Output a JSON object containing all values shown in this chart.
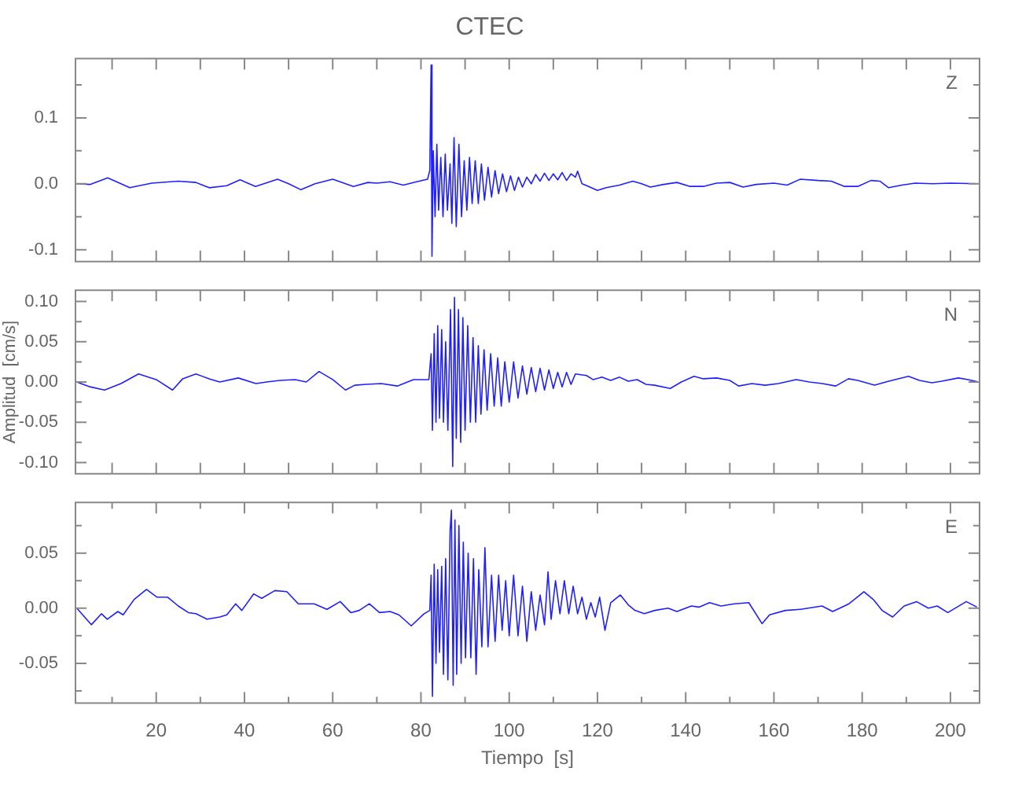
{
  "chart_data": [
    {
      "type": "line",
      "title": "CTEC",
      "annotations": [
        "Z"
      ],
      "color": "#1f1fff",
      "marker": "none",
      "tick_labels": "y",
      "xlim": [
        1.7,
        206.6
      ],
      "xticks": [
        {
          "value": 10,
          "label": null
        },
        {
          "value": 20,
          "label": null
        },
        {
          "value": 30,
          "label": null
        },
        {
          "value": 40,
          "label": null
        },
        {
          "value": 50,
          "label": null
        },
        {
          "value": 60,
          "label": null
        },
        {
          "value": 70,
          "label": null
        },
        {
          "value": 80,
          "label": null
        },
        {
          "value": 90,
          "label": null
        },
        {
          "value": 100,
          "label": null
        },
        {
          "value": 110,
          "label": null
        },
        {
          "value": 120,
          "label": null
        },
        {
          "value": 130,
          "label": null
        },
        {
          "value": 140,
          "label": null
        },
        {
          "value": 150,
          "label": null
        },
        {
          "value": 160,
          "label": null
        },
        {
          "value": 170,
          "label": null
        },
        {
          "value": 180,
          "label": null
        },
        {
          "value": 190,
          "label": null
        },
        {
          "value": 200,
          "label": null
        }
      ],
      "ylim": [
        -0.118,
        0.19
      ],
      "yticks": [
        {
          "value": -0.1,
          "label": "-0.1"
        },
        {
          "value": -0.05,
          "label": null
        },
        {
          "value": 0,
          "label": "0.0"
        },
        {
          "value": 0.05,
          "label": null
        },
        {
          "value": 0.1,
          "label": "0.1"
        },
        {
          "value": 0.15,
          "label": null
        }
      ],
      "x": [
        2,
        5,
        9,
        14,
        19,
        25,
        29,
        32,
        36,
        39,
        42.5,
        47.5,
        50,
        52.8,
        56,
        60,
        64.7,
        68,
        70,
        73,
        76,
        79,
        81.5,
        82,
        82.3,
        82.5,
        82.8,
        83.2,
        83.6,
        84,
        84.5,
        85,
        85.5,
        86,
        86.6,
        87,
        87.5,
        88,
        88.6,
        89.2,
        89.8,
        90.4,
        91,
        91.6,
        92.3,
        93,
        93.7,
        94.4,
        95.2,
        96,
        96.8,
        97.6,
        98.5,
        99.4,
        100.3,
        101.2,
        102.1,
        103,
        104,
        105,
        106,
        107,
        108,
        109,
        110,
        111,
        112,
        113,
        114,
        115,
        115.5,
        116.5,
        118,
        120,
        122,
        125,
        128,
        130,
        132,
        135,
        138,
        141,
        144,
        147,
        150,
        153,
        156,
        160,
        163,
        166,
        170,
        173,
        176,
        179,
        182,
        184,
        186,
        189,
        192,
        196,
        200,
        206
      ],
      "values": [
        0,
        -0.001,
        0.009,
        -0.006,
        0.001,
        0.004,
        0.002,
        -0.006,
        -0.003,
        0.006,
        -0.004,
        0.007,
        0,
        -0.009,
        0,
        0.007,
        -0.004,
        0.002,
        0.001,
        0.003,
        -0.002,
        0.003,
        0.007,
        0.02,
        0.18,
        -0.11,
        0.05,
        -0.05,
        0.06,
        -0.04,
        0.04,
        -0.05,
        0.045,
        -0.04,
        0.03,
        -0.06,
        0.07,
        -0.065,
        0.06,
        -0.05,
        0.035,
        -0.04,
        0.04,
        -0.03,
        0.035,
        -0.03,
        0.03,
        -0.025,
        0.025,
        -0.02,
        0.02,
        -0.015,
        0.015,
        -0.012,
        0.012,
        -0.01,
        0.01,
        -0.005,
        0.01,
        0,
        0.014,
        0.004,
        0.016,
        0.005,
        0.015,
        0.006,
        0.017,
        0.005,
        0.015,
        0.01,
        0.019,
        0,
        -0.004,
        -0.01,
        -0.006,
        -0.002,
        0.004,
        0,
        -0.005,
        -0.001,
        0.002,
        -0.004,
        -0.004,
        0.001,
        0.002,
        -0.005,
        -0.001,
        0.001,
        -0.002,
        0.007,
        0.005,
        0.004,
        -0.004,
        -0.004,
        0.005,
        0.004,
        -0.006,
        -0.002,
        0.001,
        0,
        0.001,
        0
      ]
    },
    {
      "type": "line",
      "ylabel": "Amplitud  [cm/s]",
      "annotations": [
        "N"
      ],
      "color": "#1f1fff",
      "marker": "none",
      "tick_labels": "y",
      "xlim": [
        1.7,
        206.6
      ],
      "xticks": [
        {
          "value": 10,
          "label": null
        },
        {
          "value": 20,
          "label": null
        },
        {
          "value": 30,
          "label": null
        },
        {
          "value": 40,
          "label": null
        },
        {
          "value": 50,
          "label": null
        },
        {
          "value": 60,
          "label": null
        },
        {
          "value": 70,
          "label": null
        },
        {
          "value": 80,
          "label": null
        },
        {
          "value": 90,
          "label": null
        },
        {
          "value": 100,
          "label": null
        },
        {
          "value": 110,
          "label": null
        },
        {
          "value": 120,
          "label": null
        },
        {
          "value": 130,
          "label": null
        },
        {
          "value": 140,
          "label": null
        },
        {
          "value": 150,
          "label": null
        },
        {
          "value": 160,
          "label": null
        },
        {
          "value": 170,
          "label": null
        },
        {
          "value": 180,
          "label": null
        },
        {
          "value": 190,
          "label": null
        },
        {
          "value": 200,
          "label": null
        }
      ],
      "ylim": [
        -0.114,
        0.114
      ],
      "yticks": [
        {
          "value": -0.1,
          "label": "-0.10"
        },
        {
          "value": -0.075,
          "label": null
        },
        {
          "value": -0.05,
          "label": "-0.05"
        },
        {
          "value": -0.025,
          "label": null
        },
        {
          "value": 0,
          "label": "0.00"
        },
        {
          "value": 0.025,
          "label": null
        },
        {
          "value": 0.05,
          "label": "0.05"
        },
        {
          "value": 0.075,
          "label": null
        },
        {
          "value": 0.1,
          "label": "0.10"
        }
      ],
      "x": [
        2,
        5,
        8.3,
        12,
        16,
        20,
        23.7,
        26,
        29,
        32,
        34.4,
        38.6,
        42.6,
        45,
        48,
        51.5,
        54,
        56.9,
        60,
        62.9,
        65,
        67.5,
        71,
        74.7,
        78.3,
        81.8,
        82.3,
        82.6,
        83,
        83.4,
        83.8,
        84.2,
        84.7,
        85.1,
        85.6,
        86.1,
        86.7,
        87.2,
        87.6,
        88,
        88.5,
        89,
        89.5,
        90,
        90.6,
        91.2,
        91.8,
        92.4,
        93,
        93.6,
        94.3,
        95,
        95.8,
        96.6,
        97.4,
        98.2,
        99,
        100,
        101,
        102,
        103,
        104,
        105,
        106,
        107,
        108,
        109,
        110,
        111,
        112,
        113,
        114,
        115,
        117.5,
        119,
        121,
        123,
        125,
        127,
        129,
        131,
        133,
        136.5,
        139,
        141.9,
        144,
        147,
        150,
        152,
        155,
        158,
        161,
        165,
        168,
        171,
        174,
        176.9,
        179,
        182.8,
        186,
        190.5,
        193,
        195.8,
        198,
        201.8,
        204,
        206.4
      ],
      "values": [
        0,
        -0.006,
        -0.01,
        -0.002,
        0.01,
        0.003,
        -0.01,
        0.004,
        0.01,
        0.004,
        0,
        0.005,
        -0.002,
        0,
        0.002,
        0.003,
        0,
        0.013,
        0.003,
        -0.01,
        -0.004,
        -0.003,
        -0.002,
        -0.005,
        0.003,
        0.003,
        0.035,
        -0.06,
        0.06,
        -0.05,
        0.07,
        -0.045,
        0.065,
        -0.05,
        0.05,
        -0.06,
        0.09,
        -0.105,
        0.105,
        -0.07,
        0.09,
        -0.075,
        0.08,
        -0.06,
        0.07,
        -0.05,
        0.055,
        -0.05,
        0.045,
        -0.04,
        0.04,
        -0.035,
        0.035,
        -0.03,
        0.03,
        -0.03,
        0.025,
        -0.025,
        0.025,
        -0.02,
        0.02,
        -0.015,
        0.018,
        -0.012,
        0.017,
        -0.01,
        0.015,
        -0.008,
        0.012,
        -0.006,
        0.012,
        -0.003,
        0.01,
        0.008,
        0.003,
        0.006,
        0.002,
        0.006,
        0.001,
        0.003,
        -0.003,
        -0.004,
        -0.008,
        0,
        0.007,
        0.004,
        0.005,
        0.002,
        -0.005,
        -0.002,
        -0.004,
        -0.002,
        0.003,
        0,
        -0.002,
        -0.005,
        0.004,
        0.002,
        -0.004,
        0.001,
        0.007,
        0.002,
        -0.001,
        0.001,
        0.005,
        0.003,
        0
      ]
    },
    {
      "type": "line",
      "xlabel": "Tiempo  [s]",
      "annotations": [
        "E"
      ],
      "color": "#1f1fff",
      "marker": "none",
      "xlim": [
        1.7,
        206.6
      ],
      "xticks": [
        {
          "value": 10,
          "label": null
        },
        20,
        {
          "value": 30,
          "label": null
        },
        40,
        {
          "value": 50,
          "label": null
        },
        60,
        {
          "value": 70,
          "label": null
        },
        80,
        {
          "value": 90,
          "label": null
        },
        100,
        {
          "value": 110,
          "label": null
        },
        120,
        {
          "value": 130,
          "label": null
        },
        140,
        {
          "value": 150,
          "label": null
        },
        160,
        {
          "value": 170,
          "label": null
        },
        180,
        {
          "value": 190,
          "label": null
        },
        200
      ],
      "ylim": [
        -0.086,
        0.096
      ],
      "yticks": [
        {
          "value": -0.075,
          "label": null
        },
        {
          "value": -0.05,
          "label": "-0.05"
        },
        {
          "value": -0.025,
          "label": null
        },
        {
          "value": 0,
          "label": "0.00"
        },
        {
          "value": 0.025,
          "label": null
        },
        {
          "value": 0.05,
          "label": "0.05"
        },
        {
          "value": 0.075,
          "label": null
        }
      ],
      "x": [
        2,
        5.3,
        7.6,
        8.9,
        11.3,
        12.5,
        15,
        17.8,
        20.2,
        22.6,
        25,
        27.3,
        29,
        31.5,
        34.4,
        36,
        38,
        39.4,
        42.1,
        43.9,
        46.9,
        49.6,
        52.2,
        55.8,
        58.7,
        61.7,
        64.1,
        66,
        68.3,
        70.6,
        73,
        75,
        77.8,
        80.7,
        82,
        82.3,
        82.6,
        83,
        83.4,
        83.8,
        84.2,
        84.7,
        85.1,
        85.6,
        86.1,
        86.6,
        86.9,
        87.3,
        87.7,
        88.1,
        88.6,
        89.1,
        89.6,
        90.1,
        90.7,
        91.3,
        91.9,
        92.5,
        93.1,
        93.8,
        94.5,
        95.2,
        96,
        96.8,
        97.6,
        98.4,
        99.2,
        100,
        101,
        102,
        103,
        104,
        105,
        106,
        107,
        108,
        108.8,
        109.5,
        110.5,
        111.5,
        112.5,
        113.5,
        114.5,
        115.5,
        116.5,
        117.5,
        118.5,
        119.5,
        120.5,
        121.7,
        123,
        125.2,
        127,
        128.5,
        130.6,
        133,
        136,
        138,
        141.3,
        143,
        145.4,
        148,
        151,
        154.3,
        157.3,
        159,
        162.6,
        166,
        170.9,
        173.3,
        177,
        180.4,
        182.5,
        184.5,
        186.9,
        189.5,
        192.3,
        195,
        197,
        199.4,
        201.5,
        203.6,
        206
      ],
      "values": [
        0,
        -0.015,
        -0.005,
        -0.01,
        -0.003,
        -0.006,
        0.008,
        0.017,
        0.01,
        0.01,
        0.002,
        -0.004,
        -0.005,
        -0.01,
        -0.008,
        -0.006,
        0.004,
        -0.002,
        0.013,
        0.009,
        0.016,
        0.015,
        0.004,
        0.004,
        -0.001,
        0.006,
        -0.004,
        -0.002,
        0.004,
        -0.004,
        -0.003,
        -0.006,
        -0.016,
        -0.005,
        -0.002,
        0.03,
        -0.08,
        0.04,
        -0.05,
        0.035,
        -0.04,
        0.038,
        -0.06,
        0.045,
        -0.065,
        0.07,
        0.089,
        -0.07,
        0.08,
        -0.06,
        0.075,
        -0.05,
        0.06,
        -0.045,
        0.05,
        -0.045,
        0.045,
        -0.06,
        0.035,
        -0.035,
        0.055,
        -0.035,
        0.03,
        -0.03,
        0.03,
        -0.02,
        0.025,
        -0.025,
        0.03,
        -0.025,
        0.02,
        -0.03,
        0.015,
        -0.02,
        0.012,
        -0.015,
        0.033,
        -0.01,
        0.025,
        -0.005,
        0.025,
        -0.005,
        0.02,
        -0.005,
        0.01,
        -0.01,
        0.005,
        -0.008,
        0.01,
        -0.02,
        0.005,
        0.012,
        0.003,
        -0.002,
        -0.005,
        -0.002,
        0,
        -0.003,
        0.002,
        0.001,
        0.005,
        0.002,
        0.004,
        0.005,
        -0.014,
        -0.006,
        -0.002,
        -0.001,
        0.002,
        -0.003,
        0.004,
        0.015,
        0.008,
        -0.002,
        -0.008,
        0.002,
        0.006,
        0,
        0.002,
        -0.004,
        0.001,
        0.006,
        0.001
      ]
    }
  ]
}
